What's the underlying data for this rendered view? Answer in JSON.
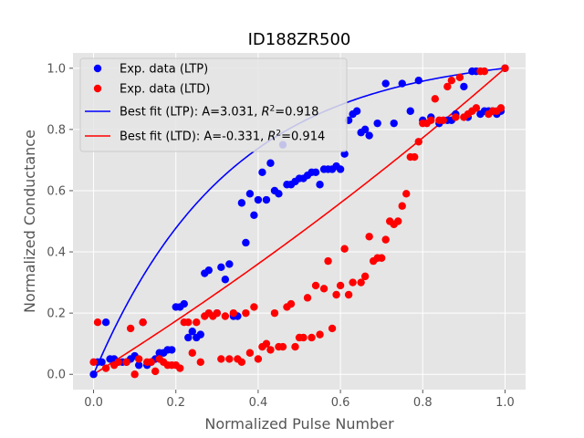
{
  "chart_data": {
    "type": "scatter",
    "title": "ID188ZR500",
    "xlabel": "Normalized Pulse Number",
    "ylabel": "Normalized Conductance",
    "xlim": [
      -0.05,
      1.05
    ],
    "ylim": [
      -0.05,
      1.05
    ],
    "xticks": [
      "0.0",
      "0.2",
      "0.4",
      "0.6",
      "0.8",
      "1.0"
    ],
    "yticks": [
      "0.0",
      "0.2",
      "0.4",
      "0.6",
      "0.8",
      "1.0"
    ],
    "grid": true,
    "legend_position": "top-left",
    "series": [
      {
        "name": "Exp. data (LTP)",
        "kind": "markers",
        "color": "#0000ff",
        "x": [
          0.0,
          0.01,
          0.02,
          0.03,
          0.04,
          0.05,
          0.06,
          0.07,
          0.08,
          0.09,
          0.1,
          0.11,
          0.12,
          0.13,
          0.14,
          0.15,
          0.16,
          0.17,
          0.18,
          0.19,
          0.2,
          0.21,
          0.22,
          0.23,
          0.24,
          0.25,
          0.26,
          0.27,
          0.28,
          0.3,
          0.31,
          0.32,
          0.33,
          0.34,
          0.35,
          0.36,
          0.37,
          0.38,
          0.39,
          0.4,
          0.41,
          0.42,
          0.43,
          0.44,
          0.45,
          0.46,
          0.47,
          0.48,
          0.49,
          0.5,
          0.51,
          0.52,
          0.53,
          0.54,
          0.55,
          0.56,
          0.57,
          0.58,
          0.59,
          0.6,
          0.61,
          0.62,
          0.63,
          0.64,
          0.65,
          0.66,
          0.67,
          0.69,
          0.71,
          0.73,
          0.75,
          0.77,
          0.79,
          0.8,
          0.82,
          0.84,
          0.86,
          0.87,
          0.88,
          0.9,
          0.91,
          0.92,
          0.93,
          0.94,
          0.95,
          0.96,
          0.97,
          0.98,
          0.99,
          1.0
        ],
        "y": [
          0.0,
          0.04,
          0.04,
          0.17,
          0.05,
          0.05,
          0.04,
          0.04,
          0.04,
          0.05,
          0.06,
          0.03,
          0.17,
          0.03,
          0.04,
          0.05,
          0.07,
          0.07,
          0.08,
          0.08,
          0.22,
          0.22,
          0.23,
          0.12,
          0.14,
          0.12,
          0.13,
          0.33,
          0.34,
          0.2,
          0.35,
          0.31,
          0.36,
          0.19,
          0.19,
          0.56,
          0.43,
          0.59,
          0.52,
          0.57,
          0.66,
          0.57,
          0.69,
          0.6,
          0.59,
          0.75,
          0.62,
          0.62,
          0.63,
          0.64,
          0.64,
          0.65,
          0.66,
          0.66,
          0.62,
          0.67,
          0.67,
          0.67,
          0.68,
          0.67,
          0.72,
          0.83,
          0.85,
          0.86,
          0.79,
          0.8,
          0.78,
          0.82,
          0.95,
          0.82,
          0.95,
          0.86,
          0.96,
          0.83,
          0.84,
          0.82,
          0.83,
          0.83,
          0.85,
          0.94,
          0.84,
          0.99,
          0.99,
          0.85,
          0.86,
          0.86,
          0.86,
          0.85,
          0.86,
          1.0
        ]
      },
      {
        "name": "Exp. data (LTD)",
        "kind": "markers",
        "color": "#ff0000",
        "x": [
          0.0,
          0.01,
          0.03,
          0.05,
          0.06,
          0.08,
          0.09,
          0.1,
          0.11,
          0.12,
          0.13,
          0.14,
          0.15,
          0.16,
          0.17,
          0.18,
          0.19,
          0.2,
          0.21,
          0.22,
          0.23,
          0.24,
          0.25,
          0.26,
          0.27,
          0.28,
          0.29,
          0.3,
          0.31,
          0.32,
          0.33,
          0.34,
          0.35,
          0.36,
          0.37,
          0.38,
          0.39,
          0.4,
          0.41,
          0.42,
          0.43,
          0.44,
          0.45,
          0.46,
          0.47,
          0.48,
          0.49,
          0.5,
          0.51,
          0.52,
          0.53,
          0.54,
          0.55,
          0.56,
          0.57,
          0.58,
          0.59,
          0.6,
          0.61,
          0.62,
          0.63,
          0.65,
          0.66,
          0.67,
          0.68,
          0.69,
          0.7,
          0.71,
          0.72,
          0.73,
          0.74,
          0.75,
          0.76,
          0.77,
          0.78,
          0.79,
          0.8,
          0.81,
          0.82,
          0.83,
          0.84,
          0.85,
          0.86,
          0.87,
          0.88,
          0.89,
          0.9,
          0.91,
          0.92,
          0.93,
          0.94,
          0.95,
          0.96,
          0.97,
          0.98,
          0.99,
          1.0
        ],
        "y": [
          0.04,
          0.17,
          0.02,
          0.03,
          0.04,
          0.04,
          0.15,
          0.0,
          0.05,
          0.17,
          0.04,
          0.04,
          0.01,
          0.05,
          0.04,
          0.03,
          0.03,
          0.03,
          0.02,
          0.17,
          0.17,
          0.07,
          0.17,
          0.04,
          0.19,
          0.2,
          0.19,
          0.2,
          0.05,
          0.19,
          0.05,
          0.2,
          0.05,
          0.04,
          0.2,
          0.07,
          0.22,
          0.05,
          0.09,
          0.1,
          0.08,
          0.2,
          0.09,
          0.09,
          0.22,
          0.23,
          0.09,
          0.12,
          0.12,
          0.25,
          0.12,
          0.29,
          0.13,
          0.28,
          0.37,
          0.15,
          0.26,
          0.29,
          0.41,
          0.26,
          0.3,
          0.3,
          0.32,
          0.45,
          0.37,
          0.38,
          0.38,
          0.44,
          0.5,
          0.49,
          0.5,
          0.55,
          0.59,
          0.71,
          0.71,
          0.76,
          0.82,
          0.82,
          0.83,
          0.9,
          0.83,
          0.83,
          0.94,
          0.96,
          0.84,
          0.97,
          0.84,
          0.85,
          0.86,
          0.87,
          0.99,
          0.99,
          0.85,
          0.86,
          0.86,
          0.87,
          1.0
        ]
      },
      {
        "name": "Best fit (LTP): A=3.031, R²=0.918",
        "kind": "line",
        "color": "#0000ff",
        "A": 3.031
      },
      {
        "name": "Best fit (LTD): A=-0.331, R²=0.914",
        "kind": "line",
        "color": "#ff0000",
        "A": -0.331
      }
    ],
    "legend_entries": [
      {
        "label": "Exp. data (LTP)",
        "marker": "dot",
        "color": "#0000ff"
      },
      {
        "label": "Exp. data (LTD)",
        "marker": "dot",
        "color": "#ff0000"
      },
      {
        "label_prefix": "Best fit (LTP): A=3.031, ",
        "label_r": "R",
        "label_sup": "2",
        "label_suffix": "=0.918",
        "marker": "line",
        "color": "#0000ff"
      },
      {
        "label_prefix": "Best fit (LTD): A=-0.331, ",
        "label_r": "R",
        "label_sup": "2",
        "label_suffix": "=0.914",
        "marker": "line",
        "color": "#ff0000"
      }
    ]
  }
}
